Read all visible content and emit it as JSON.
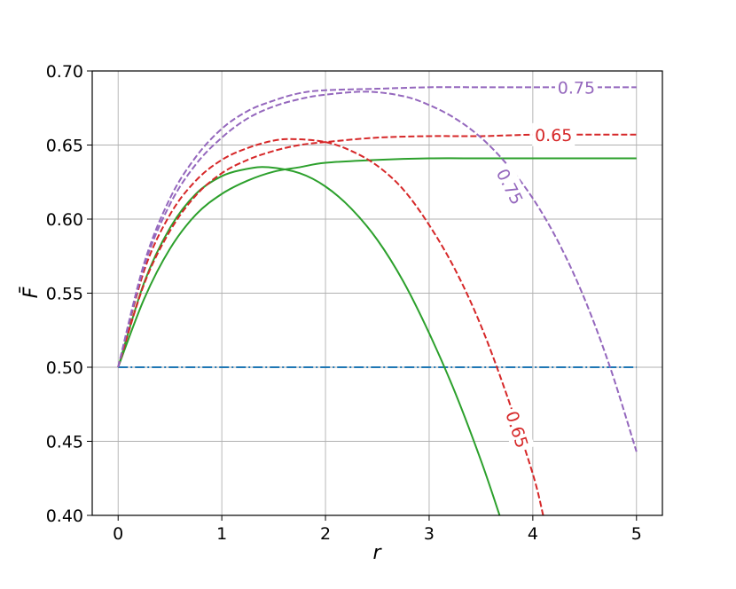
{
  "chart_data": {
    "type": "line",
    "title": "",
    "xlabel": "r",
    "ylabel": "F̄",
    "xlim": [
      -0.25,
      5.25
    ],
    "ylim": [
      0.4,
      0.7
    ],
    "grid": true,
    "x_ticks": [
      "0",
      "1",
      "2",
      "3",
      "4",
      "5"
    ],
    "y_ticks": [
      "0.40",
      "0.45",
      "0.50",
      "0.55",
      "0.60",
      "0.65",
      "0.70"
    ],
    "x_tick_values": [
      0,
      1,
      2,
      3,
      4,
      5
    ],
    "y_tick_values": [
      0.4,
      0.45,
      0.5,
      0.55,
      0.6,
      0.65,
      0.7
    ],
    "series": [
      {
        "color": "#1f77b4",
        "style": "dashdot",
        "x": [
          0,
          5
        ],
        "y": [
          0.5,
          0.5
        ]
      },
      {
        "color": "#2ca02c",
        "style": "solid",
        "x": [
          0,
          0.25,
          0.5,
          0.75,
          1.0,
          1.25,
          1.5,
          1.75,
          2.0,
          2.5,
          3.0,
          3.5,
          4.0,
          4.5,
          5.0
        ],
        "y": [
          0.5,
          0.546,
          0.58,
          0.603,
          0.617,
          0.626,
          0.632,
          0.635,
          0.638,
          0.64,
          0.641,
          0.641,
          0.641,
          0.641,
          0.641
        ]
      },
      {
        "color": "#2ca02c",
        "style": "solid",
        "x": [
          0,
          0.25,
          0.5,
          0.75,
          1.0,
          1.25,
          1.45,
          1.75,
          2.0,
          2.25,
          2.5,
          2.75,
          3.0,
          3.25,
          3.5,
          3.68
        ],
        "y": [
          0.5,
          0.557,
          0.594,
          0.617,
          0.629,
          0.634,
          0.635,
          0.631,
          0.622,
          0.607,
          0.586,
          0.558,
          0.523,
          0.483,
          0.437,
          0.4
        ]
      },
      {
        "color": "#d62728",
        "style": "dashed",
        "x": [
          0,
          0.25,
          0.5,
          0.75,
          1.0,
          1.25,
          1.5,
          1.75,
          2.0,
          2.5,
          3.0,
          3.5,
          4.0,
          4.5,
          5.0
        ],
        "y": [
          0.5,
          0.556,
          0.592,
          0.616,
          0.631,
          0.64,
          0.646,
          0.65,
          0.652,
          0.655,
          0.656,
          0.656,
          0.657,
          0.657,
          0.657
        ]
      },
      {
        "color": "#d62728",
        "style": "dashed",
        "x": [
          0,
          0.25,
          0.5,
          0.75,
          1.0,
          1.25,
          1.5,
          1.7,
          2.0,
          2.25,
          2.5,
          2.75,
          3.0,
          3.25,
          3.5,
          3.75,
          4.0,
          4.1
        ],
        "y": [
          0.5,
          0.565,
          0.603,
          0.626,
          0.64,
          0.648,
          0.653,
          0.654,
          0.652,
          0.646,
          0.636,
          0.62,
          0.596,
          0.566,
          0.528,
          0.481,
          0.428,
          0.4
        ]
      },
      {
        "color": "#9467bd",
        "style": "dashed",
        "x": [
          0,
          0.25,
          0.5,
          0.75,
          1.0,
          1.25,
          1.5,
          1.75,
          2.0,
          2.5,
          3.0,
          3.5,
          4.0,
          4.5,
          5.0
        ],
        "y": [
          0.5,
          0.57,
          0.614,
          0.642,
          0.661,
          0.673,
          0.68,
          0.685,
          0.687,
          0.688,
          0.689,
          0.689,
          0.689,
          0.689,
          0.689
        ]
      },
      {
        "color": "#9467bd",
        "style": "dashed",
        "x": [
          0,
          0.25,
          0.5,
          0.75,
          1.0,
          1.25,
          1.5,
          1.75,
          2.0,
          2.4,
          2.75,
          3.0,
          3.25,
          3.5,
          3.75,
          4.0,
          4.25,
          4.5,
          4.75,
          5.0
        ],
        "y": [
          0.5,
          0.568,
          0.61,
          0.637,
          0.655,
          0.668,
          0.676,
          0.681,
          0.684,
          0.686,
          0.683,
          0.677,
          0.668,
          0.655,
          0.637,
          0.614,
          0.584,
          0.546,
          0.499,
          0.443
        ]
      }
    ],
    "annotations": [
      {
        "text": "0.75",
        "x": 4.42,
        "y": 0.689,
        "color": "#9467bd",
        "rotate": 0
      },
      {
        "text": "0.65",
        "x": 4.2,
        "y": 0.657,
        "color": "#d62728",
        "rotate": 0
      },
      {
        "text": "0.75",
        "x": 3.78,
        "y": 0.622,
        "color": "#9467bd",
        "rotate": 63
      },
      {
        "text": "0.65",
        "x": 3.85,
        "y": 0.458,
        "color": "#d62728",
        "rotate": 72
      }
    ]
  }
}
